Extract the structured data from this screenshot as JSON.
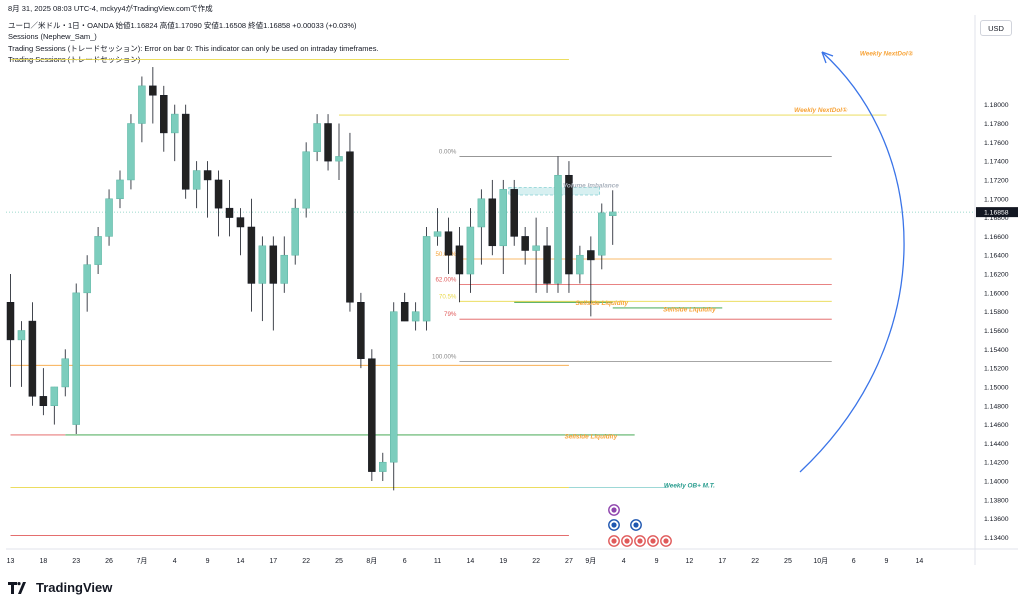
{
  "header": {
    "timestamp": "8月 31, 2025 08:03 UTC-4",
    "author": "mckyy4がTradingView.comで作成",
    "symbol_line": "ユーロ／米ドル・1日・OANDA",
    "ohlc": "始値1.16824 高値1.17090 安値1.16508 終値1.16858 +0.00033 (+0.03%)",
    "indicator1": "Sessions (Nephew_Sam_)",
    "indicator2": "Trading Sessions (トレードセッション): Error on bar 0: This indicator can only be used on intraday timeframes.",
    "indicator3": "Trading Sessions (トレードセッション)"
  },
  "currency_label": "USD",
  "brand": "TradingView",
  "colors": {
    "up": "#7ccdbd",
    "down": "#222222",
    "orange": "#f7a43a",
    "red": "#e05a5a",
    "green": "#2e9c3c",
    "yellow": "#e9d84a",
    "blue": "#3a74e8",
    "gray": "#888888"
  },
  "chart_data": {
    "type": "candlestick",
    "ylim": [
      1.1332,
      1.189
    ],
    "y_ticks": [
      "1.18000",
      "1.17800",
      "1.17600",
      "1.17400",
      "1.17200",
      "1.17000",
      "1.16800",
      "1.16600",
      "1.16400",
      "1.16200",
      "1.16000",
      "1.15800",
      "1.15600",
      "1.15400",
      "1.15200",
      "1.15000",
      "1.14800",
      "1.14600",
      "1.14400",
      "1.14200",
      "1.14000",
      "1.13800",
      "1.13600",
      "1.13400"
    ],
    "y_tick_values": [
      1.18,
      1.178,
      1.176,
      1.174,
      1.172,
      1.17,
      1.168,
      1.166,
      1.164,
      1.162,
      1.16,
      1.158,
      1.156,
      1.154,
      1.152,
      1.15,
      1.148,
      1.146,
      1.144,
      1.142,
      1.14,
      1.138,
      1.136,
      1.134
    ],
    "x_ticks": [
      "13",
      "18",
      "23",
      "26",
      "7月",
      "4",
      "9",
      "14",
      "17",
      "22",
      "25",
      "8月",
      "6",
      "11",
      "14",
      "19",
      "22",
      "27",
      "9月",
      "4",
      "9",
      "12",
      "17",
      "22",
      "25",
      "10月",
      "6",
      "9",
      "14"
    ],
    "x_tick_slots": [
      0,
      3,
      6,
      9,
      12,
      15,
      18,
      21,
      24,
      27,
      30,
      33,
      36,
      39,
      42,
      45,
      48,
      51,
      53,
      56,
      59,
      62,
      65,
      68,
      71,
      74,
      77,
      80,
      83
    ],
    "last_price": "1.16858",
    "last_price_value": 1.16858,
    "candles": [
      {
        "o": 1.159,
        "h": 1.162,
        "l": 1.15,
        "c": 1.155
      },
      {
        "o": 1.155,
        "h": 1.157,
        "l": 1.15,
        "c": 1.156
      },
      {
        "o": 1.157,
        "h": 1.159,
        "l": 1.148,
        "c": 1.149
      },
      {
        "o": 1.149,
        "h": 1.152,
        "l": 1.147,
        "c": 1.148
      },
      {
        "o": 1.148,
        "h": 1.15,
        "l": 1.146,
        "c": 1.15
      },
      {
        "o": 1.15,
        "h": 1.154,
        "l": 1.149,
        "c": 1.153
      },
      {
        "o": 1.146,
        "h": 1.161,
        "l": 1.145,
        "c": 1.16
      },
      {
        "o": 1.16,
        "h": 1.164,
        "l": 1.158,
        "c": 1.163
      },
      {
        "o": 1.163,
        "h": 1.167,
        "l": 1.162,
        "c": 1.166
      },
      {
        "o": 1.166,
        "h": 1.171,
        "l": 1.165,
        "c": 1.17
      },
      {
        "o": 1.17,
        "h": 1.173,
        "l": 1.169,
        "c": 1.172
      },
      {
        "o": 1.172,
        "h": 1.179,
        "l": 1.171,
        "c": 1.178
      },
      {
        "o": 1.178,
        "h": 1.183,
        "l": 1.176,
        "c": 1.182
      },
      {
        "o": 1.182,
        "h": 1.184,
        "l": 1.178,
        "c": 1.181
      },
      {
        "o": 1.181,
        "h": 1.182,
        "l": 1.175,
        "c": 1.177
      },
      {
        "o": 1.177,
        "h": 1.18,
        "l": 1.174,
        "c": 1.179
      },
      {
        "o": 1.179,
        "h": 1.18,
        "l": 1.17,
        "c": 1.171
      },
      {
        "o": 1.171,
        "h": 1.174,
        "l": 1.169,
        "c": 1.173
      },
      {
        "o": 1.173,
        "h": 1.174,
        "l": 1.168,
        "c": 1.172
      },
      {
        "o": 1.172,
        "h": 1.173,
        "l": 1.166,
        "c": 1.169
      },
      {
        "o": 1.169,
        "h": 1.172,
        "l": 1.166,
        "c": 1.168
      },
      {
        "o": 1.168,
        "h": 1.169,
        "l": 1.164,
        "c": 1.167
      },
      {
        "o": 1.167,
        "h": 1.17,
        "l": 1.158,
        "c": 1.161
      },
      {
        "o": 1.161,
        "h": 1.166,
        "l": 1.157,
        "c": 1.165
      },
      {
        "o": 1.165,
        "h": 1.166,
        "l": 1.156,
        "c": 1.161
      },
      {
        "o": 1.161,
        "h": 1.166,
        "l": 1.16,
        "c": 1.164
      },
      {
        "o": 1.164,
        "h": 1.17,
        "l": 1.163,
        "c": 1.169
      },
      {
        "o": 1.169,
        "h": 1.176,
        "l": 1.168,
        "c": 1.175
      },
      {
        "o": 1.175,
        "h": 1.179,
        "l": 1.174,
        "c": 1.178
      },
      {
        "o": 1.178,
        "h": 1.179,
        "l": 1.173,
        "c": 1.174
      },
      {
        "o": 1.174,
        "h": 1.178,
        "l": 1.172,
        "c": 1.1745
      },
      {
        "o": 1.175,
        "h": 1.177,
        "l": 1.158,
        "c": 1.159
      },
      {
        "o": 1.159,
        "h": 1.16,
        "l": 1.152,
        "c": 1.153
      },
      {
        "o": 1.153,
        "h": 1.154,
        "l": 1.14,
        "c": 1.141
      },
      {
        "o": 1.141,
        "h": 1.143,
        "l": 1.14,
        "c": 1.142
      },
      {
        "o": 1.142,
        "h": 1.159,
        "l": 1.139,
        "c": 1.158
      },
      {
        "o": 1.159,
        "h": 1.16,
        "l": 1.157,
        "c": 1.157
      },
      {
        "o": 1.157,
        "h": 1.159,
        "l": 1.156,
        "c": 1.158
      },
      {
        "o": 1.157,
        "h": 1.167,
        "l": 1.156,
        "c": 1.166
      },
      {
        "o": 1.166,
        "h": 1.169,
        "l": 1.165,
        "c": 1.1665
      },
      {
        "o": 1.1665,
        "h": 1.168,
        "l": 1.162,
        "c": 1.164
      },
      {
        "o": 1.165,
        "h": 1.167,
        "l": 1.159,
        "c": 1.162
      },
      {
        "o": 1.162,
        "h": 1.169,
        "l": 1.16,
        "c": 1.167
      },
      {
        "o": 1.167,
        "h": 1.171,
        "l": 1.163,
        "c": 1.17
      },
      {
        "o": 1.17,
        "h": 1.172,
        "l": 1.164,
        "c": 1.165
      },
      {
        "o": 1.165,
        "h": 1.172,
        "l": 1.162,
        "c": 1.171
      },
      {
        "o": 1.171,
        "h": 1.172,
        "l": 1.165,
        "c": 1.166
      },
      {
        "o": 1.166,
        "h": 1.167,
        "l": 1.163,
        "c": 1.1645
      },
      {
        "o": 1.1645,
        "h": 1.168,
        "l": 1.16,
        "c": 1.165
      },
      {
        "o": 1.165,
        "h": 1.167,
        "l": 1.16,
        "c": 1.161
      },
      {
        "o": 1.161,
        "h": 1.1745,
        "l": 1.16,
        "c": 1.1725
      },
      {
        "o": 1.1725,
        "h": 1.174,
        "l": 1.16,
        "c": 1.162
      },
      {
        "o": 1.162,
        "h": 1.165,
        "l": 1.161,
        "c": 1.164
      },
      {
        "o": 1.1645,
        "h": 1.166,
        "l": 1.1575,
        "c": 1.1635
      },
      {
        "o": 1.164,
        "h": 1.1695,
        "l": 1.1625,
        "c": 1.1685
      },
      {
        "o": 1.1682,
        "h": 1.1709,
        "l": 1.1651,
        "c": 1.1686
      }
    ],
    "hlines": [
      {
        "y": 1.1848,
        "from": 0,
        "to": 51,
        "color": "#e9d84a"
      },
      {
        "y": 1.1789,
        "from": 30,
        "to": 80,
        "color": "#e9d84a"
      },
      {
        "y": 1.1523,
        "from": 0,
        "to": 51,
        "color": "#f7a43a"
      },
      {
        "y": 1.1449,
        "from": 5,
        "to": 57,
        "color": "#2e9c3c"
      },
      {
        "y": 1.1449,
        "from": 0,
        "to": 5,
        "color": "#e05a5a"
      },
      {
        "y": 1.1393,
        "from": 0,
        "to": 51,
        "color": "#e9d84a"
      },
      {
        "y": 1.1393,
        "from": 51,
        "to": 60,
        "color": "#8fd2d0"
      },
      {
        "y": 1.1342,
        "from": 0,
        "to": 51,
        "color": "#e05a5a"
      },
      {
        "y": 1.159,
        "from": 46,
        "to": 55,
        "color": "#2e9c3c"
      },
      {
        "y": 1.1584,
        "from": 55,
        "to": 65,
        "color": "#2e9c3c"
      }
    ],
    "fib": {
      "from": 41,
      "to": 75,
      "levels": [
        {
          "label": "0.00%",
          "value": 1.1745,
          "color": "#888888"
        },
        {
          "label": "50.00%",
          "value": 1.1636,
          "color": "#f7a43a"
        },
        {
          "label": "62.00%",
          "value": 1.1609,
          "color": "#e05a5a"
        },
        {
          "label": "70.5%",
          "value": 1.1591,
          "color": "#e9d84a"
        },
        {
          "label": "79%",
          "value": 1.1572,
          "color": "#e05a5a"
        },
        {
          "label": "100.00%",
          "value": 1.1527,
          "color": "#888888"
        }
      ]
    },
    "annotations": [
      {
        "text": "Weekly NextDol②",
        "slot": 80,
        "y": 1.185,
        "color": "#f7a43a"
      },
      {
        "text": "Weekly NextDol①",
        "slot": 74,
        "y": 1.179,
        "color": "#f7a43a"
      },
      {
        "text": "Volume Imbalance",
        "slot": 53,
        "y": 1.171,
        "color": "#aab2bd"
      },
      {
        "text": "Sellside Liquidity",
        "slot": 54,
        "y": 1.1585,
        "color": "#f7a43a"
      },
      {
        "text": "Sellside Liquidity",
        "slot": 62,
        "y": 1.1578,
        "color": "#f7a43a"
      },
      {
        "text": "Sellside Liquidity",
        "slot": 53,
        "y": 1.1443,
        "color": "#f7a43a"
      },
      {
        "text": "Weekly OB+ M.T.",
        "slot": 62,
        "y": 1.1391,
        "color": "#2a9d8f"
      }
    ]
  }
}
